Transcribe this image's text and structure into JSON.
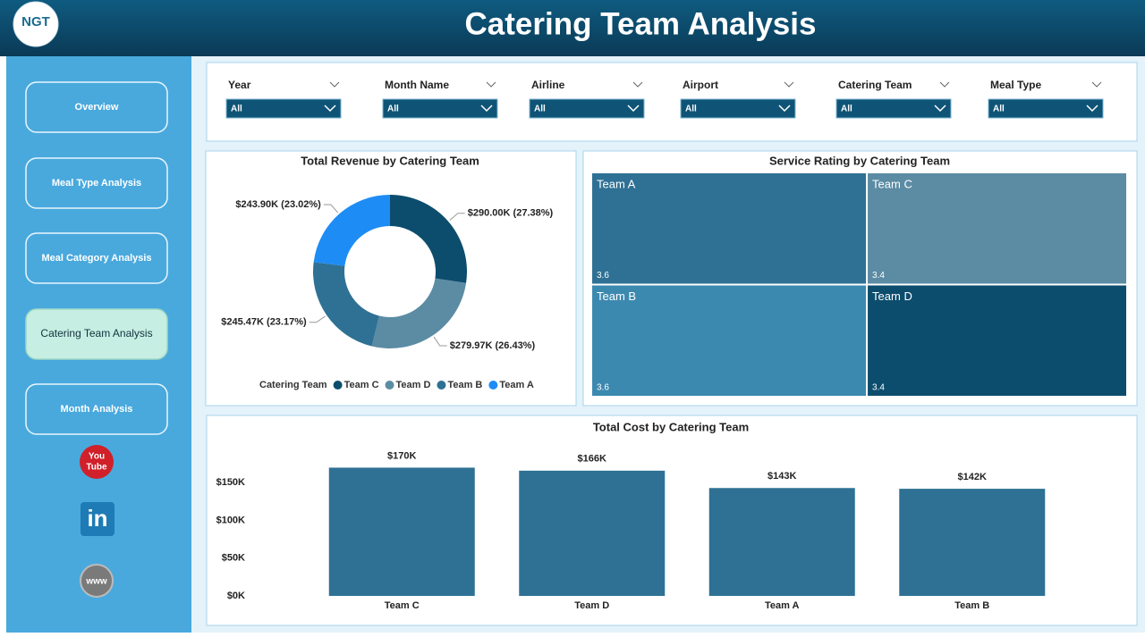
{
  "header": {
    "logo": "NGT",
    "title": "Catering Team Analysis"
  },
  "nav": {
    "items": [
      "Overview",
      "Meal Type Analysis",
      "Meal Category Analysis",
      "Catering Team Analysis",
      "Month Analysis"
    ],
    "active": "Catering Team Analysis"
  },
  "social": {
    "youtube": [
      "You",
      "Tube"
    ],
    "linkedin": "in",
    "web": "www"
  },
  "filters": [
    {
      "label": "Year",
      "value": "All"
    },
    {
      "label": "Month Name",
      "value": "All"
    },
    {
      "label": "Airline",
      "value": "All"
    },
    {
      "label": "Airport",
      "value": "All"
    },
    {
      "label": "Catering Team",
      "value": "All"
    },
    {
      "label": "Meal Type",
      "value": "All"
    }
  ],
  "chart_data": [
    {
      "type": "donut",
      "title": "Total Revenue by Catering Team",
      "legend_title": "Catering Team",
      "categories": [
        "Team C",
        "Team D",
        "Team B",
        "Team A"
      ],
      "values": [
        290.0,
        279.97,
        245.47,
        243.9
      ],
      "value_labels": [
        "$290.00K (27.38%)",
        "$279.97K (26.43%)",
        "$245.47K (23.17%)",
        "$243.90K (23.02%)"
      ],
      "colors": [
        "#0c4d6d",
        "#5b8ca4",
        "#2e7194",
        "#1e8cf5"
      ]
    },
    {
      "type": "treemap",
      "title": "Service Rating by Catering Team",
      "categories": [
        "Team A",
        "Team C",
        "Team B",
        "Team D"
      ],
      "values": [
        3.6,
        3.4,
        3.6,
        3.4
      ],
      "colors": [
        "#2e7194",
        "#5b8ca4",
        "#3c89b0",
        "#0c4d6d"
      ]
    },
    {
      "type": "bar",
      "title": "Total Cost by Catering Team",
      "categories": [
        "Team C",
        "Team D",
        "Team A",
        "Team B"
      ],
      "values": [
        170000,
        166000,
        143000,
        142000
      ],
      "value_labels": [
        "$170K",
        "$166K",
        "$143K",
        "$142K"
      ],
      "color": "#2e7194",
      "ylim": [
        0,
        180000
      ],
      "yticks": [
        {
          "value": 0,
          "label": "$0K"
        },
        {
          "value": 50000,
          "label": "$50K"
        },
        {
          "value": 100000,
          "label": "$100K"
        },
        {
          "value": 150000,
          "label": "$150K"
        }
      ],
      "grid": false
    }
  ]
}
